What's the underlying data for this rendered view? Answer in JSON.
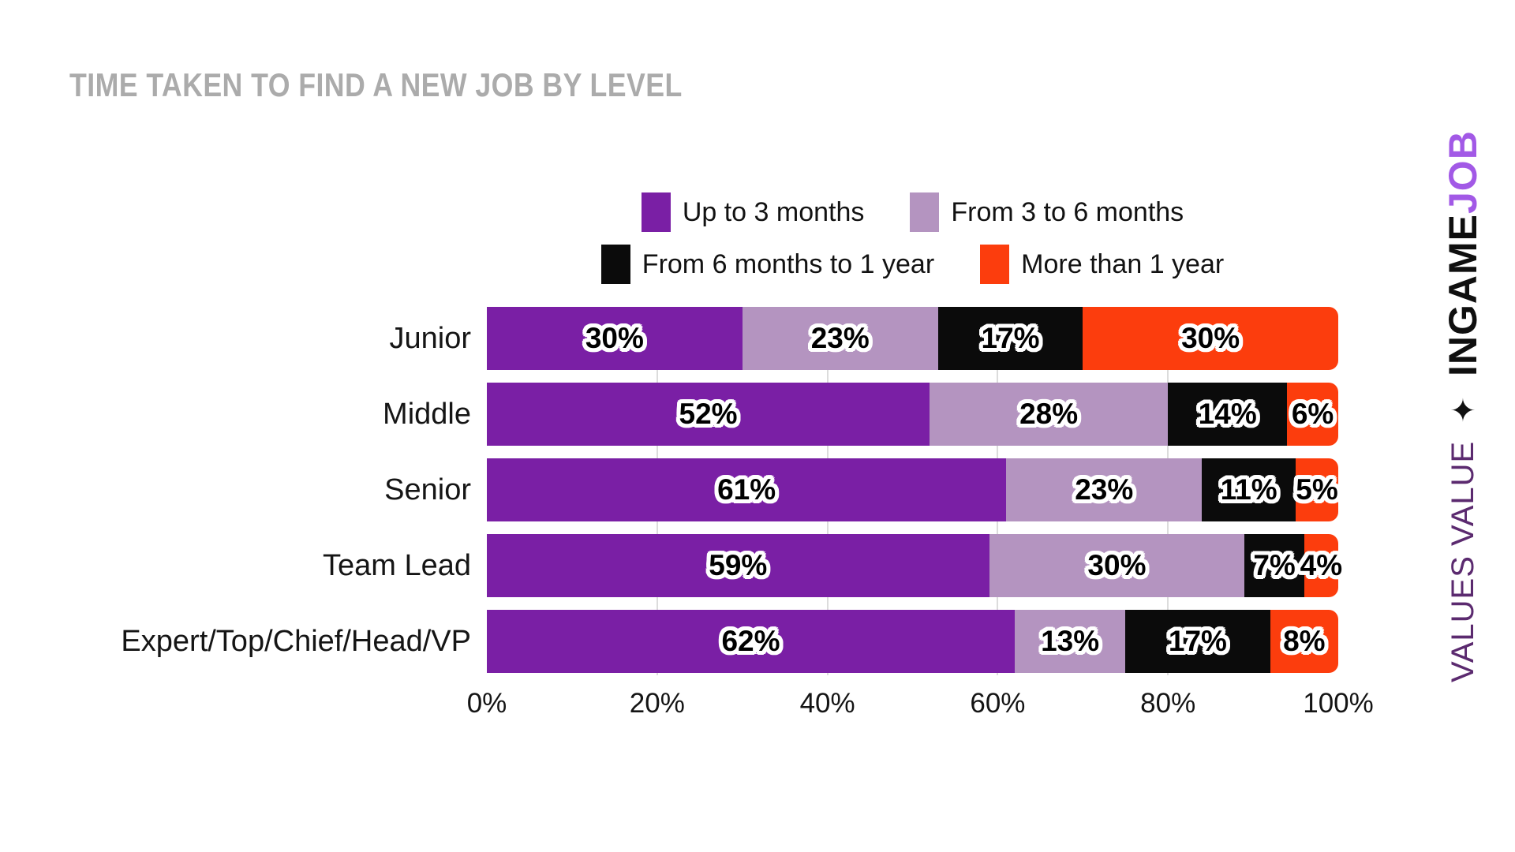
{
  "title": "TIME TAKEN TO FIND A NEW JOB BY LEVEL",
  "colors": {
    "purple": "#7A1FA5",
    "lavender": "#B494C0",
    "black": "#0B0B0B",
    "orange": "#FC3D0D",
    "title_gray": "#ABABAB",
    "grid": "#DCDCDC",
    "brand_purple": "#A259E6",
    "tagline_purple": "#5B2A6F"
  },
  "branding": {
    "name_black": "INGAME",
    "name_purple": "JOB",
    "sparkle": "✦",
    "tagline": "VALUES VALUE"
  },
  "chart_data": {
    "type": "bar",
    "orientation": "horizontal_stacked",
    "title": "TIME TAKEN TO FIND A NEW JOB BY LEVEL",
    "categories": [
      "Junior",
      "Middle",
      "Senior",
      "Team Lead",
      "Expert/Top/Chief/Head/VP"
    ],
    "series": [
      {
        "name": "Up to 3 months",
        "color_key": "purple",
        "values": [
          30,
          52,
          61,
          59,
          62
        ]
      },
      {
        "name": "From 3 to 6 months",
        "color_key": "lavender",
        "values": [
          23,
          28,
          23,
          30,
          13
        ]
      },
      {
        "name": "From 6 months to 1 year",
        "color_key": "black",
        "values": [
          17,
          14,
          11,
          7,
          17
        ]
      },
      {
        "name": "More than 1 year",
        "color_key": "orange",
        "values": [
          30,
          6,
          5,
          4,
          8
        ]
      }
    ],
    "value_suffix": "%",
    "x_ticks": [
      "0%",
      "20%",
      "40%",
      "60%",
      "80%",
      "100%"
    ],
    "xlim": [
      0,
      100
    ],
    "grid": "vertical",
    "legend_position": "top"
  }
}
